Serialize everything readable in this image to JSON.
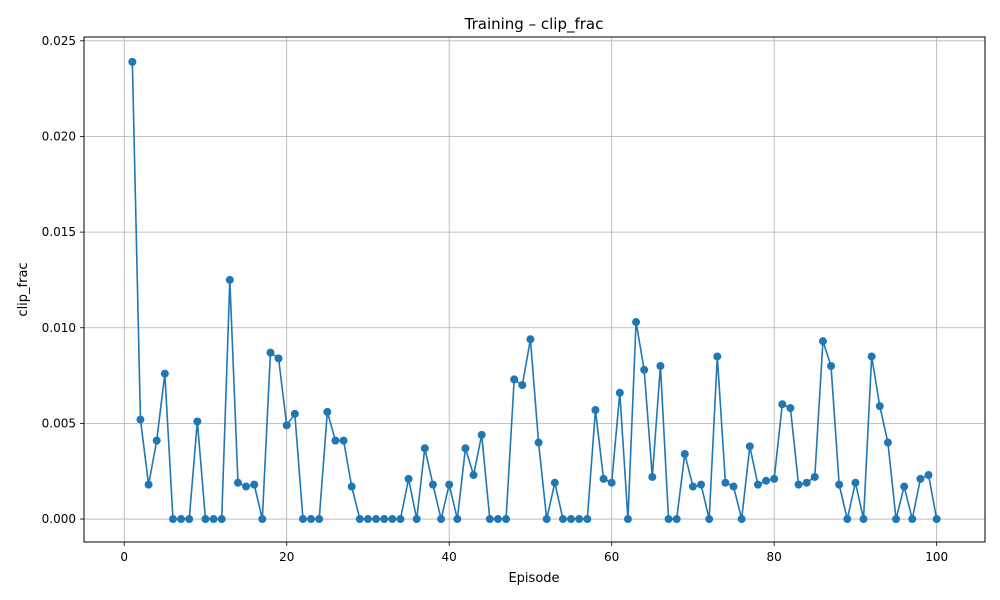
{
  "chart_data": {
    "type": "line",
    "title": "Training – clip_frac",
    "xlabel": "Episode",
    "ylabel": "clip_frac",
    "xlim": [
      -4.95,
      105.95
    ],
    "ylim": [
      -0.0012,
      0.0252
    ],
    "xticks": [
      0,
      20,
      40,
      60,
      80,
      100
    ],
    "xtick_labels": [
      "0",
      "20",
      "40",
      "60",
      "80",
      "100"
    ],
    "yticks": [
      0.0,
      0.005,
      0.01,
      0.015,
      0.02,
      0.025
    ],
    "ytick_labels": [
      "0.000",
      "0.005",
      "0.010",
      "0.015",
      "0.020",
      "0.025"
    ],
    "grid": true,
    "color": "#1f77b4",
    "marker": "circle",
    "series": [
      {
        "x": [
          1,
          2,
          3,
          4,
          5,
          6,
          7,
          8,
          9,
          10,
          11,
          12,
          13,
          14,
          15,
          16,
          17,
          18,
          19,
          20,
          21,
          22,
          23,
          24,
          25,
          26,
          27,
          28,
          29,
          30,
          31,
          32,
          33,
          34,
          35,
          36,
          37,
          38,
          39,
          40,
          41,
          42,
          43,
          44,
          45,
          46,
          47,
          48,
          49,
          50,
          51,
          52,
          53,
          54,
          55,
          56,
          57,
          58,
          59,
          60,
          61,
          62,
          63,
          64,
          65,
          66,
          67,
          68,
          69,
          70,
          71,
          72,
          73,
          74,
          75,
          76,
          77,
          78,
          79,
          80,
          81,
          82,
          83,
          84,
          85,
          86,
          87,
          88,
          89,
          90,
          91,
          92,
          93,
          94,
          95,
          96,
          97,
          98,
          99,
          100
        ],
        "values": [
          0.0239,
          0.0052,
          0.0018,
          0.0041,
          0.0076,
          0.0,
          0.0,
          0.0,
          0.0051,
          0.0,
          0.0,
          0.0,
          0.0125,
          0.0019,
          0.0017,
          0.0018,
          0.0,
          0.0087,
          0.0084,
          0.0049,
          0.0055,
          0.0,
          0.0,
          0.0,
          0.0056,
          0.0041,
          0.0041,
          0.0017,
          0.0,
          0.0,
          0.0,
          0.0,
          0.0,
          0.0,
          0.0021,
          0.0,
          0.0037,
          0.0018,
          0.0,
          0.0018,
          0.0,
          0.0037,
          0.0023,
          0.0044,
          0.0,
          0.0,
          0.0,
          0.0073,
          0.007,
          0.0094,
          0.004,
          0.0,
          0.0019,
          0.0,
          0.0,
          0.0,
          0.0,
          0.0057,
          0.0021,
          0.0019,
          0.0066,
          0.0,
          0.0103,
          0.0078,
          0.0022,
          0.008,
          0.0,
          0.0,
          0.0034,
          0.0017,
          0.0018,
          0.0,
          0.0085,
          0.0019,
          0.0017,
          0.0,
          0.0038,
          0.0018,
          0.002,
          0.0021,
          0.006,
          0.0058,
          0.0018,
          0.0019,
          0.0022,
          0.0093,
          0.008,
          0.0018,
          0.0,
          0.0019,
          0.0,
          0.0085,
          0.0059,
          0.004,
          0.0,
          0.0017,
          0.0,
          0.0021,
          0.0023,
          0.0
        ]
      }
    ]
  }
}
